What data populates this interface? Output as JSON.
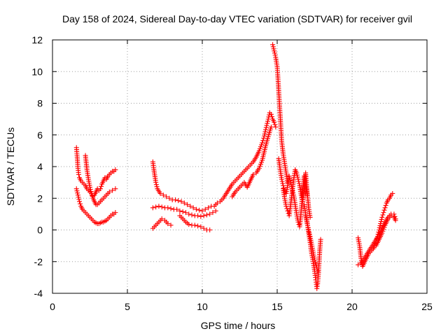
{
  "chart_data": {
    "type": "scatter",
    "title": "Day 158 of 2024, Sidereal Day-to-day VTEC variation (SDTVAR) for receiver gvil",
    "xlabel": "GPS time / hours",
    "ylabel": "SDTVAR / TECUs",
    "xlim": [
      0,
      25
    ],
    "ylim": [
      -4,
      12
    ],
    "x_ticks": [
      0,
      5,
      10,
      15,
      20,
      25
    ],
    "y_ticks": [
      -4,
      -2,
      0,
      2,
      4,
      6,
      8,
      10,
      12
    ],
    "x_tick_labels": [
      "0",
      "5",
      "10",
      "15",
      "20",
      "25"
    ],
    "y_tick_labels": [
      "-4",
      "-2",
      "0",
      "2",
      "4",
      "6",
      "8",
      "10",
      "12"
    ],
    "grid": true,
    "marker": "plus",
    "marker_color": "#ff0000",
    "series": [
      {
        "x": [
          1.6,
          1.65,
          1.7,
          1.75,
          1.8,
          1.9,
          2.0,
          2.1,
          2.2,
          2.3,
          2.4,
          2.5,
          2.6,
          2.7,
          2.8,
          2.9,
          3.0,
          3.1,
          3.2,
          3.3,
          3.4,
          3.5,
          3.6,
          3.7,
          3.8,
          3.9,
          4.0,
          4.1,
          4.2
        ],
        "y": [
          5.2,
          4.6,
          3.9,
          3.5,
          3.3,
          3.1,
          3.0,
          2.9,
          2.8,
          2.6,
          2.5,
          2.4,
          2.3,
          2.1,
          2.2,
          2.4,
          2.6,
          2.5,
          2.6,
          2.9,
          3.1,
          3.3,
          3.2,
          3.4,
          3.5,
          3.6,
          3.7,
          3.7,
          3.8
        ]
      },
      {
        "x": [
          1.6,
          1.7,
          1.8,
          1.9,
          2.0,
          2.1,
          2.2,
          2.3,
          2.4,
          2.5,
          2.6,
          2.7,
          2.8,
          2.9,
          3.0,
          3.1,
          3.2,
          3.3,
          3.4,
          3.5,
          3.6,
          3.7,
          3.8,
          3.9,
          4.0,
          4.1,
          4.2
        ],
        "y": [
          2.6,
          2.2,
          1.8,
          1.5,
          1.3,
          1.2,
          1.1,
          1.0,
          0.9,
          0.8,
          0.7,
          0.6,
          0.5,
          0.45,
          0.4,
          0.4,
          0.45,
          0.5,
          0.5,
          0.55,
          0.6,
          0.7,
          0.8,
          0.9,
          1.0,
          1.0,
          1.1
        ]
      },
      {
        "x": [
          2.2,
          2.3,
          2.4,
          2.5,
          2.6,
          2.7,
          2.8,
          2.9,
          3.0,
          3.2,
          3.4,
          3.6,
          3.8,
          4.0,
          4.2
        ],
        "y": [
          4.7,
          3.8,
          3.2,
          2.7,
          2.3,
          2.0,
          1.8,
          1.6,
          1.6,
          1.8,
          2.0,
          2.2,
          2.4,
          2.5,
          2.6
        ]
      },
      {
        "x": [
          6.7,
          6.8,
          6.9,
          7.0,
          7.2,
          7.4,
          7.6,
          7.8,
          8.0,
          8.2,
          8.4,
          8.6,
          8.8,
          9.0,
          9.2,
          9.4,
          9.6,
          9.8,
          10.0,
          10.2,
          10.4,
          10.6
        ],
        "y": [
          4.3,
          3.6,
          3.0,
          2.6,
          2.3,
          2.2,
          2.1,
          2.0,
          1.9,
          1.9,
          1.85,
          1.8,
          1.7,
          1.6,
          1.5,
          1.4,
          1.3,
          1.25,
          1.2,
          1.3,
          1.4,
          1.5
        ]
      },
      {
        "x": [
          6.7,
          6.9,
          7.1,
          7.3,
          7.5,
          7.7,
          7.9,
          8.1,
          8.3,
          8.5,
          8.7,
          8.9,
          9.1,
          9.3,
          9.5,
          9.7,
          9.9,
          10.1,
          10.3,
          10.5,
          10.7,
          10.9
        ],
        "y": [
          1.4,
          1.45,
          1.5,
          1.45,
          1.4,
          1.4,
          1.35,
          1.3,
          1.3,
          1.2,
          1.15,
          1.1,
          1.0,
          0.95,
          0.9,
          0.9,
          0.85,
          0.9,
          0.95,
          1.0,
          1.1,
          1.2
        ]
      },
      {
        "x": [
          6.7,
          6.9,
          7.1,
          7.3,
          7.5,
          7.7,
          7.9
        ],
        "y": [
          0.1,
          0.3,
          0.5,
          0.7,
          0.6,
          0.4,
          0.3
        ]
      },
      {
        "x": [
          8.5,
          8.7,
          8.9,
          9.1,
          9.3,
          9.5,
          9.7,
          9.9,
          10.1,
          10.3,
          10.5
        ],
        "y": [
          0.9,
          0.7,
          0.5,
          0.35,
          0.3,
          0.3,
          0.25,
          0.2,
          0.1,
          0.0,
          0.0
        ]
      },
      {
        "x": [
          10.8,
          11.0,
          11.2,
          11.4,
          11.6,
          11.8,
          12.0,
          12.2,
          12.4,
          12.6,
          12.8,
          13.0,
          13.2,
          13.4,
          13.6,
          13.8,
          14.0,
          14.1,
          14.2,
          14.3,
          14.4,
          14.5,
          14.6,
          14.7,
          14.8,
          14.9
        ],
        "y": [
          1.5,
          1.7,
          1.8,
          2.0,
          2.3,
          2.6,
          2.9,
          3.1,
          3.3,
          3.5,
          3.7,
          3.9,
          4.1,
          4.3,
          4.6,
          5.0,
          5.5,
          5.8,
          6.2,
          6.6,
          7.0,
          7.4,
          7.3,
          7.0,
          6.8,
          6.5
        ]
      },
      {
        "x": [
          12.0,
          12.2,
          12.4,
          12.6,
          12.8,
          13.0,
          13.2,
          13.4,
          13.6,
          13.8,
          14.0,
          14.2,
          14.4,
          14.6
        ],
        "y": [
          2.1,
          2.4,
          2.6,
          2.8,
          3.0,
          2.7,
          3.1,
          3.5,
          3.6,
          3.9,
          4.4,
          5.2,
          5.9,
          6.5
        ]
      },
      {
        "x": [
          14.7,
          14.8,
          14.9,
          15.0,
          15.05,
          15.1,
          15.15,
          15.2,
          15.25,
          15.3,
          15.4,
          15.5,
          15.6,
          15.7
        ],
        "y": [
          11.7,
          11.3,
          10.9,
          10.3,
          9.6,
          8.8,
          8.0,
          7.2,
          6.4,
          5.6,
          4.8,
          4.2,
          3.6,
          3.0
        ]
      },
      {
        "x": [
          15.1,
          15.2,
          15.3,
          15.4,
          15.5,
          15.6,
          15.7,
          15.8,
          15.9,
          16.0,
          16.1,
          16.2,
          16.3,
          16.4,
          16.5,
          16.6,
          16.7,
          16.8,
          16.9,
          17.0
        ],
        "y": [
          4.5,
          3.8,
          3.2,
          2.8,
          2.5,
          2.3,
          2.8,
          3.4,
          3.0,
          2.6,
          2.2,
          1.6,
          1.0,
          0.5,
          0.2,
          1.2,
          2.4,
          3.4,
          2.9,
          2.2
        ]
      },
      {
        "x": [
          15.4,
          15.5,
          15.6,
          15.7,
          15.8,
          15.9,
          16.0,
          16.1,
          16.2,
          16.3,
          16.4,
          16.5,
          16.6,
          16.7,
          16.8,
          16.9,
          17.0,
          17.1,
          17.2
        ],
        "y": [
          2.6,
          2.0,
          1.5,
          1.2,
          0.9,
          1.6,
          2.4,
          3.2,
          3.8,
          3.6,
          3.2,
          2.8,
          2.2,
          1.8,
          2.6,
          3.6,
          2.4,
          1.4,
          0.8
        ]
      },
      {
        "x": [
          16.8,
          16.9,
          17.0,
          17.1,
          17.2,
          17.3,
          17.4,
          17.5,
          17.55,
          17.6,
          17.65,
          17.7,
          17.75,
          17.8,
          17.85,
          17.9
        ],
        "y": [
          1.6,
          1.0,
          0.5,
          -0.2,
          -0.8,
          -1.5,
          -2.0,
          -2.6,
          -3.0,
          -3.3,
          -3.7,
          -3.4,
          -2.8,
          -2.0,
          -1.2,
          -0.6
        ]
      },
      {
        "x": [
          16.9,
          17.0,
          17.1,
          17.2,
          17.3,
          17.4,
          17.5,
          17.6,
          17.7
        ],
        "y": [
          0.9,
          0.4,
          0.0,
          -0.4,
          -0.9,
          -1.4,
          -1.9,
          -2.2,
          -2.6
        ]
      },
      {
        "x": [
          20.4,
          20.5,
          20.6,
          20.7,
          20.8,
          20.9,
          21.0,
          21.1,
          21.2,
          21.3,
          21.4,
          21.5,
          21.6,
          21.7,
          21.8,
          21.9,
          22.0,
          22.1,
          22.2,
          22.3,
          22.4,
          22.5,
          22.6,
          22.7
        ],
        "y": [
          -0.5,
          -1.0,
          -1.8,
          -2.3,
          -2.1,
          -1.9,
          -1.7,
          -1.5,
          -1.4,
          -1.3,
          -1.2,
          -1.0,
          -0.7,
          -0.4,
          0.0,
          0.4,
          0.8,
          1.1,
          1.4,
          1.7,
          1.9,
          2.0,
          2.2,
          2.3
        ]
      },
      {
        "x": [
          20.4,
          20.6,
          20.8,
          21.0,
          21.2,
          21.4,
          21.6,
          21.8,
          22.0,
          22.2,
          22.4,
          22.6,
          22.8,
          22.9
        ],
        "y": [
          -2.2,
          -2.1,
          -1.8,
          -1.5,
          -1.2,
          -0.9,
          -0.6,
          -0.3,
          0.1,
          0.5,
          0.8,
          1.0,
          1.0,
          0.7
        ]
      },
      {
        "x": [
          21.6,
          21.8,
          22.0,
          22.2,
          22.4,
          22.6,
          22.8,
          22.9
        ],
        "y": [
          -1.0,
          -0.6,
          -0.2,
          0.3,
          0.7,
          0.9,
          0.8,
          0.6
        ]
      }
    ]
  }
}
